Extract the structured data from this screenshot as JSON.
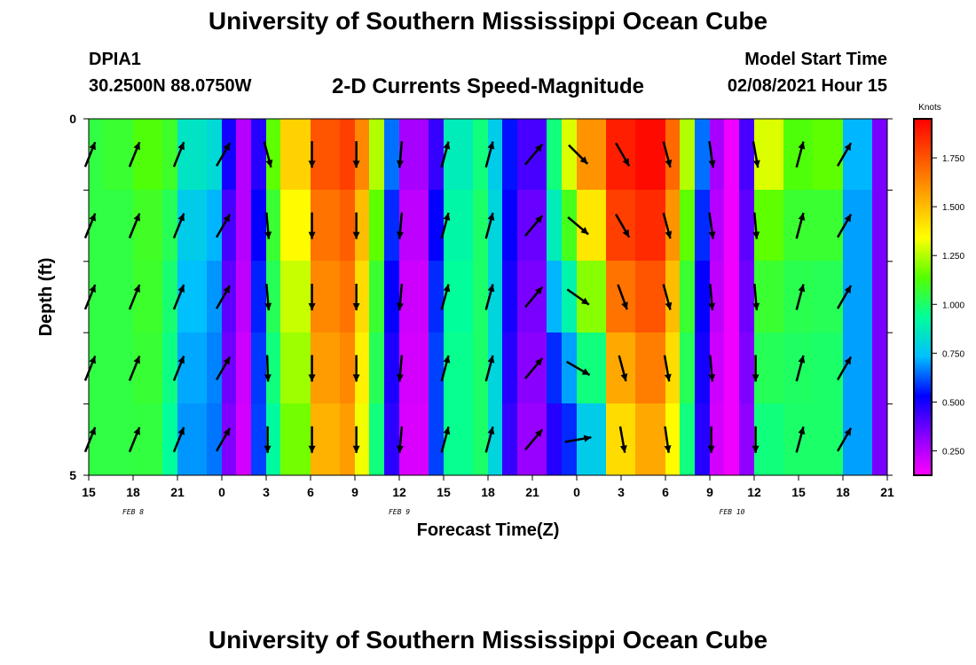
{
  "header": {
    "title": "University of Southern Mississippi Ocean Cube",
    "station": "DPIA1",
    "coords": "30.2500N 88.0750W",
    "subtitle": "2-D Currents Speed-Magnitude",
    "model_start_label": "Model Start Time",
    "model_start_value": "02/08/2021 Hour 15"
  },
  "footer": {
    "title": "University of Southern Mississippi Ocean Cube"
  },
  "chart_data": {
    "type": "heatmap",
    "subtitle": "2-D Currents Speed-Magnitude",
    "xlabel": "Forecast Time(Z)",
    "ylabel": "Depth (ft)",
    "x_tick_labels": [
      "15",
      "18",
      "21",
      "0",
      "3",
      "6",
      "9",
      "12",
      "15",
      "18",
      "21",
      "0",
      "3",
      "6",
      "9",
      "12",
      "15",
      "18",
      "21"
    ],
    "date_labels": [
      {
        "label": "FEB 8",
        "hour_index": 3
      },
      {
        "label": "FEB 9",
        "hour_index": 21
      },
      {
        "label": "FEB 10",
        "hour_index": 43.5
      }
    ],
    "x_range_hours_from_start": [
      0,
      54
    ],
    "y_ticks": [
      {
        "label": "0",
        "depth": 0
      },
      {
        "label": "5",
        "depth": 5
      }
    ],
    "y_range_ft": [
      0,
      5
    ],
    "colorbar": {
      "title": "Knots",
      "range": [
        0.125,
        1.95
      ],
      "tick_labels": [
        "0.250",
        "0.500",
        "0.750",
        "1.000",
        "1.250",
        "1.500",
        "1.750"
      ],
      "tick_values": [
        0.25,
        0.5,
        0.75,
        1.0,
        1.25,
        1.5,
        1.75
      ],
      "colors": [
        "#ff00ff",
        "#8800ff",
        "#0000ff",
        "#00bfff",
        "#00ff99",
        "#55ff00",
        "#ffff00",
        "#ffaa00",
        "#ff5500",
        "#ff0000"
      ]
    },
    "depth_levels_ft": [
      0,
      1,
      2,
      3,
      4,
      5
    ],
    "speed_profiles": [
      {
        "hour": 0,
        "values": [
          1.05,
          1.05,
          1.05,
          1.05,
          1.05,
          1.05
        ]
      },
      {
        "hour": 1,
        "values": [
          1.1,
          1.05,
          1.05,
          1.05,
          1.05,
          1.05
        ]
      },
      {
        "hour": 3,
        "values": [
          1.15,
          1.1,
          1.08,
          1.08,
          1.06,
          1.05
        ]
      },
      {
        "hour": 5,
        "values": [
          1.12,
          1.05,
          1.0,
          0.98,
          0.95,
          0.92
        ]
      },
      {
        "hour": 6,
        "values": [
          0.9,
          0.8,
          0.75,
          0.72,
          0.7,
          0.68
        ]
      },
      {
        "hour": 8,
        "values": [
          0.88,
          0.75,
          0.7,
          0.68,
          0.66,
          0.65
        ]
      },
      {
        "hour": 9,
        "values": [
          0.55,
          0.45,
          0.4,
          0.38,
          0.35,
          0.33
        ]
      },
      {
        "hour": 10,
        "values": [
          0.25,
          0.25,
          0.25,
          0.22,
          0.2,
          0.2
        ]
      },
      {
        "hour": 11,
        "values": [
          0.45,
          0.5,
          0.55,
          0.58,
          0.6,
          0.6
        ]
      },
      {
        "hour": 12,
        "values": [
          1.2,
          1.1,
          1.05,
          1.0,
          0.95,
          0.9
        ]
      },
      {
        "hour": 13,
        "values": [
          1.5,
          1.4,
          1.3,
          1.25,
          1.2,
          1.15
        ]
      },
      {
        "hour": 15,
        "values": [
          1.8,
          1.7,
          1.65,
          1.6,
          1.55,
          1.5
        ]
      },
      {
        "hour": 17,
        "values": [
          1.85,
          1.75,
          1.7,
          1.65,
          1.6,
          1.55
        ]
      },
      {
        "hour": 18,
        "values": [
          1.7,
          1.55,
          1.45,
          1.4,
          1.35,
          1.3
        ]
      },
      {
        "hour": 19,
        "values": [
          1.3,
          1.2,
          1.1,
          1.05,
          1.0,
          0.95
        ]
      },
      {
        "hour": 20,
        "values": [
          0.7,
          0.6,
          0.55,
          0.5,
          0.48,
          0.45
        ]
      },
      {
        "hour": 21,
        "values": [
          0.3,
          0.25,
          0.22,
          0.2,
          0.2,
          0.18
        ]
      },
      {
        "hour": 23,
        "values": [
          0.4,
          0.5,
          0.55,
          0.6,
          0.6,
          0.6
        ]
      },
      {
        "hour": 24,
        "values": [
          0.85,
          0.9,
          0.92,
          0.95,
          0.95,
          0.95
        ]
      },
      {
        "hour": 26,
        "values": [
          0.95,
          1.0,
          1.0,
          1.0,
          1.0,
          1.0
        ]
      },
      {
        "hour": 27,
        "values": [
          0.75,
          0.8,
          0.8,
          0.8,
          0.8,
          0.8
        ]
      },
      {
        "hour": 28,
        "values": [
          0.55,
          0.55,
          0.5,
          0.5,
          0.45,
          0.45
        ]
      },
      {
        "hour": 29,
        "values": [
          0.45,
          0.4,
          0.35,
          0.35,
          0.3,
          0.3
        ]
      },
      {
        "hour": 31,
        "values": [
          1.0,
          0.95,
          0.8,
          0.65,
          0.5,
          0.45
        ]
      },
      {
        "hour": 32,
        "values": [
          1.4,
          1.2,
          1.0,
          0.8,
          0.6,
          0.55
        ]
      },
      {
        "hour": 33,
        "values": [
          1.7,
          1.5,
          1.3,
          1.1,
          0.85,
          0.7
        ]
      },
      {
        "hour": 35,
        "values": [
          1.9,
          1.85,
          1.75,
          1.6,
          1.5,
          1.35
        ]
      },
      {
        "hour": 37,
        "values": [
          1.95,
          1.9,
          1.8,
          1.7,
          1.6,
          1.5
        ]
      },
      {
        "hour": 39,
        "values": [
          1.75,
          1.65,
          1.55,
          1.45,
          1.4,
          1.3
        ]
      },
      {
        "hour": 40,
        "values": [
          1.3,
          1.2,
          1.1,
          1.05,
          1.0,
          0.95
        ]
      },
      {
        "hour": 41,
        "values": [
          0.7,
          0.6,
          0.55,
          0.5,
          0.5,
          0.45
        ]
      },
      {
        "hour": 42,
        "values": [
          0.3,
          0.25,
          0.25,
          0.22,
          0.2,
          0.2
        ]
      },
      {
        "hour": 43,
        "values": [
          0.15,
          0.15,
          0.15,
          0.15,
          0.15,
          0.15
        ]
      },
      {
        "hour": 44,
        "values": [
          0.45,
          0.4,
          0.38,
          0.35,
          0.33,
          0.3
        ]
      },
      {
        "hour": 45,
        "values": [
          1.4,
          1.2,
          1.1,
          1.05,
          1.0,
          0.95
        ]
      },
      {
        "hour": 47,
        "values": [
          1.15,
          1.1,
          1.05,
          1.02,
          1.0,
          1.0
        ]
      },
      {
        "hour": 49,
        "values": [
          1.2,
          1.1,
          1.05,
          1.0,
          1.0,
          1.0
        ]
      },
      {
        "hour": 51,
        "values": [
          0.75,
          0.7,
          0.7,
          0.7,
          0.7,
          0.7
        ]
      },
      {
        "hour": 53,
        "values": [
          0.35,
          0.35,
          0.35,
          0.35,
          0.35,
          0.35
        ]
      },
      {
        "hour": 54,
        "values": [
          0.4,
          0.4,
          0.4,
          0.4,
          0.4,
          0.4
        ]
      }
    ],
    "arrow_hours": [
      0,
      3,
      6,
      9,
      12,
      15,
      18,
      21,
      24,
      27,
      30,
      33,
      36,
      39,
      42,
      45,
      48,
      51
    ],
    "arrow_depths_ft": [
      0.5,
      1.5,
      2.5,
      3.5,
      4.5
    ],
    "arrow_angles_deg": [
      [
        22,
        22,
        22,
        22,
        22
      ],
      [
        22,
        22,
        22,
        22,
        22
      ],
      [
        22,
        22,
        22,
        22,
        22
      ],
      [
        30,
        30,
        30,
        30,
        30
      ],
      [
        165,
        175,
        175,
        178,
        180
      ],
      [
        180,
        180,
        180,
        180,
        180
      ],
      [
        180,
        180,
        180,
        180,
        180
      ],
      [
        185,
        185,
        185,
        185,
        185
      ],
      [
        15,
        15,
        15,
        15,
        15
      ],
      [
        15,
        15,
        15,
        15,
        15
      ],
      [
        40,
        40,
        40,
        40,
        40
      ],
      [
        135,
        130,
        125,
        120,
        80
      ],
      [
        150,
        150,
        160,
        165,
        170
      ],
      [
        165,
        165,
        165,
        170,
        172
      ],
      [
        172,
        172,
        175,
        175,
        180
      ],
      [
        170,
        175,
        175,
        180,
        180
      ],
      [
        15,
        15,
        15,
        15,
        15
      ],
      [
        30,
        30,
        30,
        30,
        30
      ]
    ]
  }
}
